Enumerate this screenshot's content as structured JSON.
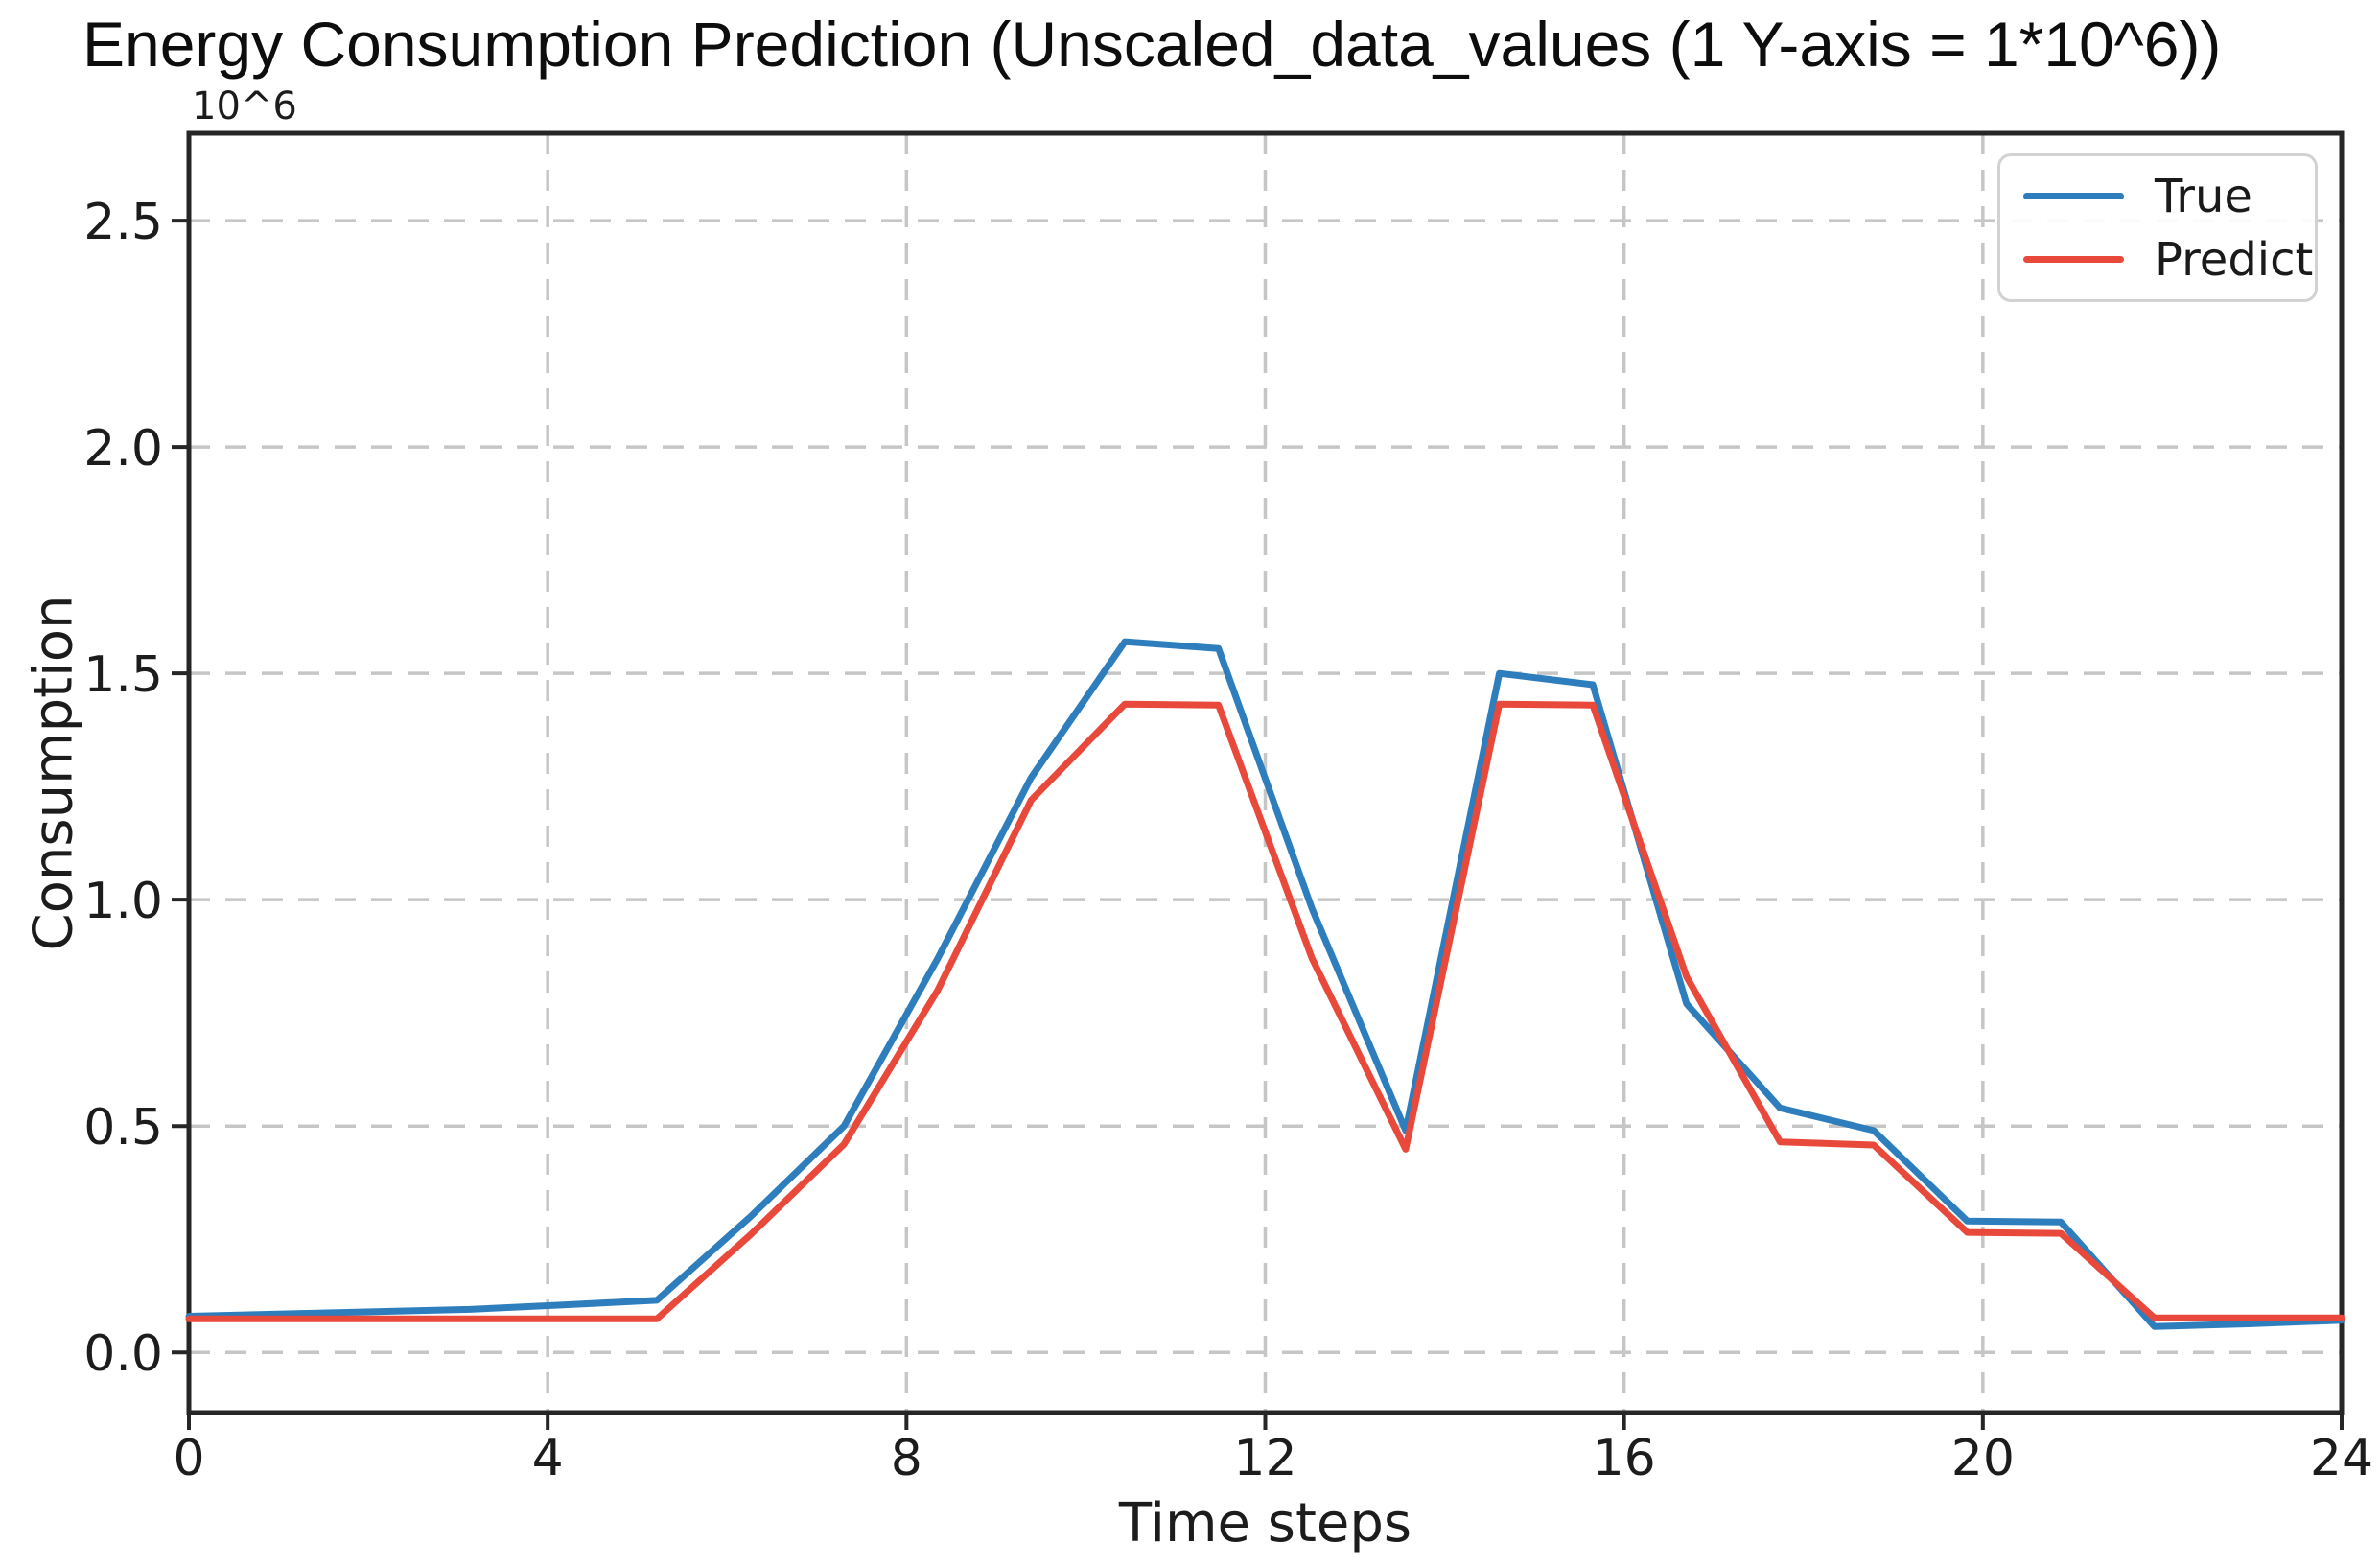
{
  "figure": {
    "title": "Energy Consumption Prediction (Unscaled_data_values (1 Y-axis = 1*10^6))",
    "y_offset_text": "10^6"
  },
  "axes": {
    "xlabel": "Time steps",
    "ylabel": "Consumption",
    "x_tick_labels": [
      "0",
      "4",
      "8",
      "12",
      "16",
      "20",
      "24"
    ],
    "x_tick_values": [
      0,
      4,
      8,
      12,
      16,
      20,
      24
    ],
    "y_tick_labels": [
      "0.0",
      "0.5",
      "1.0",
      "1.5",
      "2.0",
      "2.5"
    ],
    "y_tick_values": [
      0.0,
      0.5,
      1.0,
      1.5,
      2.0,
      2.5
    ]
  },
  "legend": {
    "items": [
      {
        "label": "True",
        "color": "#2e7ebd"
      },
      {
        "label": "Predict",
        "color": "#e8493b"
      }
    ]
  },
  "colors": {
    "true_line": "#2e7ebd",
    "predict_line": "#e8493b",
    "grid": "#c6c6c6",
    "spine": "#262626",
    "tick_text": "#1c1c1c",
    "background": "#ffffff",
    "legend_border": "#d2d2d2"
  },
  "chart_data": {
    "type": "line",
    "title": "Energy Consumption Prediction (Unscaled_data_values (1 Y-axis = 1*10^6))",
    "xlabel": "Time steps",
    "ylabel": "Consumption",
    "y_scale_label": "10^6",
    "xlim": [
      0,
      24
    ],
    "ylim": [
      -0.133,
      2.693
    ],
    "grid": true,
    "grid_style": "dashed",
    "legend_position": "upper right",
    "x": [
      0,
      1.043,
      2.087,
      3.13,
      4.174,
      5.217,
      6.261,
      7.304,
      8.348,
      9.391,
      10.435,
      11.478,
      12.522,
      13.565,
      14.609,
      15.652,
      16.696,
      17.739,
      18.783,
      19.826,
      20.87,
      21.913,
      22.957,
      24.0
    ],
    "series": [
      {
        "name": "True",
        "color": "#2e7ebd",
        "values": [
          0.08,
          0.085,
          0.09,
          0.095,
          0.105,
          0.115,
          0.3,
          0.5,
          0.87,
          1.27,
          1.57,
          1.555,
          0.98,
          0.49,
          1.5,
          1.475,
          0.77,
          0.54,
          0.49,
          0.29,
          0.288,
          0.057,
          0.063,
          0.071
        ]
      },
      {
        "name": "Predict",
        "color": "#e8493b",
        "values": [
          0.074,
          0.074,
          0.074,
          0.074,
          0.074,
          0.074,
          0.26,
          0.46,
          0.8,
          1.22,
          1.432,
          1.43,
          0.87,
          0.449,
          1.432,
          1.43,
          0.83,
          0.465,
          0.458,
          0.265,
          0.263,
          0.076,
          0.076,
          0.076
        ]
      }
    ]
  }
}
